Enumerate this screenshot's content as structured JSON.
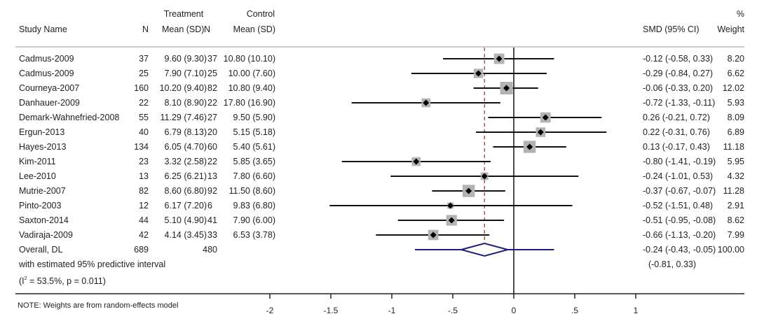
{
  "chart_data": {
    "type": "forest",
    "title": "",
    "xlabel": "",
    "x_ticks": [
      -2,
      -1.5,
      -1,
      -0.5,
      0,
      0.5,
      1
    ],
    "x_tick_labels": [
      "-2",
      "-1.5",
      "-1",
      "-.5",
      "0",
      ".5",
      "1"
    ],
    "xlim": [
      -2,
      1.9
    ],
    "null_line": 0,
    "headers": {
      "study": "Study Name",
      "trt_group": "Treatment",
      "ctrl_group": "Control",
      "trt_n": "N",
      "trt_mean_sd": "Mean (SD)",
      "ctrl_n": "N",
      "ctrl_mean_sd": "Mean (SD)",
      "effect": "SMD (95% CI)",
      "weight_top": "%",
      "weight": "Weight"
    },
    "studies": [
      {
        "name": "Cadmus-2009",
        "trt_n": "37",
        "trt_mean_sd": "9.60 (9.30)",
        "ctrl_n": "37",
        "ctrl_mean_sd": "10.80 (10.10)",
        "smd": -0.12,
        "lo": -0.58,
        "hi": 0.33,
        "ci_text": "-0.12 (-0.58, 0.33)",
        "weight": 8.2,
        "weight_text": "8.20"
      },
      {
        "name": "Cadmus-2009",
        "trt_n": "25",
        "trt_mean_sd": "7.90 (7.10)",
        "ctrl_n": "25",
        "ctrl_mean_sd": "10.00 (7.60)",
        "smd": -0.29,
        "lo": -0.84,
        "hi": 0.27,
        "ci_text": "-0.29 (-0.84, 0.27)",
        "weight": 6.62,
        "weight_text": "6.62"
      },
      {
        "name": "Courneya-2007",
        "trt_n": "160",
        "trt_mean_sd": "10.20 (9.40)",
        "ctrl_n": "82",
        "ctrl_mean_sd": "10.80 (9.40)",
        "smd": -0.06,
        "lo": -0.33,
        "hi": 0.2,
        "ci_text": "-0.06 (-0.33, 0.20)",
        "weight": 12.02,
        "weight_text": "12.02"
      },
      {
        "name": "Danhauer-2009",
        "trt_n": "22",
        "trt_mean_sd": "8.10 (8.90)",
        "ctrl_n": "22",
        "ctrl_mean_sd": "17.80 (16.90)",
        "smd": -0.72,
        "lo": -1.33,
        "hi": -0.11,
        "ci_text": "-0.72 (-1.33, -0.11)",
        "weight": 5.93,
        "weight_text": "5.93"
      },
      {
        "name": "Demark-Wahnefried-2008",
        "trt_n": "55",
        "trt_mean_sd": "11.29 (7.46)",
        "ctrl_n": "27",
        "ctrl_mean_sd": "9.50 (5.90)",
        "smd": 0.26,
        "lo": -0.21,
        "hi": 0.72,
        "ci_text": "0.26 (-0.21, 0.72)",
        "weight": 8.09,
        "weight_text": "8.09"
      },
      {
        "name": "Ergun-2013",
        "trt_n": "40",
        "trt_mean_sd": "6.79 (8.13)",
        "ctrl_n": "20",
        "ctrl_mean_sd": "5.15 (5.18)",
        "smd": 0.22,
        "lo": -0.31,
        "hi": 0.76,
        "ci_text": "0.22 (-0.31, 0.76)",
        "weight": 6.89,
        "weight_text": "6.89"
      },
      {
        "name": "Hayes-2013",
        "trt_n": "134",
        "trt_mean_sd": "6.05 (4.70)",
        "ctrl_n": "60",
        "ctrl_mean_sd": "5.40 (5.61)",
        "smd": 0.13,
        "lo": -0.17,
        "hi": 0.43,
        "ci_text": "0.13 (-0.17, 0.43)",
        "weight": 11.18,
        "weight_text": "11.18"
      },
      {
        "name": "Kim-2011",
        "trt_n": "23",
        "trt_mean_sd": "3.32 (2.58)",
        "ctrl_n": "22",
        "ctrl_mean_sd": "5.85 (3.65)",
        "smd": -0.8,
        "lo": -1.41,
        "hi": -0.19,
        "ci_text": "-0.80 (-1.41, -0.19)",
        "weight": 5.95,
        "weight_text": "5.95"
      },
      {
        "name": "Lee-2010",
        "trt_n": "13",
        "trt_mean_sd": "6.25 (6.21)",
        "ctrl_n": "13",
        "ctrl_mean_sd": "7.80 (6.60)",
        "smd": -0.24,
        "lo": -1.01,
        "hi": 0.53,
        "ci_text": "-0.24 (-1.01, 0.53)",
        "weight": 4.32,
        "weight_text": "4.32"
      },
      {
        "name": "Mutrie-2007",
        "trt_n": "82",
        "trt_mean_sd": "8.60 (6.80)",
        "ctrl_n": "92",
        "ctrl_mean_sd": "11.50 (8.60)",
        "smd": -0.37,
        "lo": -0.67,
        "hi": -0.07,
        "ci_text": "-0.37 (-0.67, -0.07)",
        "weight": 11.28,
        "weight_text": "11.28"
      },
      {
        "name": "Pinto-2003",
        "trt_n": "12",
        "trt_mean_sd": "6.17 (7.20)",
        "ctrl_n": "6",
        "ctrl_mean_sd": "9.83 (6.80)",
        "smd": -0.52,
        "lo": -1.51,
        "hi": 0.48,
        "ci_text": "-0.52 (-1.51, 0.48)",
        "weight": 2.91,
        "weight_text": "2.91"
      },
      {
        "name": "Saxton-2014",
        "trt_n": "44",
        "trt_mean_sd": "5.10 (4.90)",
        "ctrl_n": "41",
        "ctrl_mean_sd": "7.90 (6.00)",
        "smd": -0.51,
        "lo": -0.95,
        "hi": -0.08,
        "ci_text": "-0.51 (-0.95, -0.08)",
        "weight": 8.62,
        "weight_text": "8.62"
      },
      {
        "name": "Vadiraja-2009",
        "trt_n": "42",
        "trt_mean_sd": "4.14 (3.45)",
        "ctrl_n": "33",
        "ctrl_mean_sd": "6.53 (3.78)",
        "smd": -0.66,
        "lo": -1.13,
        "hi": -0.2,
        "ci_text": "-0.66 (-1.13, -0.20)",
        "weight": 7.99,
        "weight_text": "7.99"
      }
    ],
    "overall": {
      "name": "Overall, DL",
      "trt_n": "689",
      "ctrl_n": "480",
      "smd": -0.24,
      "lo": -0.43,
      "hi": -0.05,
      "ci_text": "-0.24 (-0.43, -0.05)",
      "weight_text": "100.00",
      "pi_lo": -0.81,
      "pi_hi": 0.33,
      "pi_label": "with estimated 95% predictive interval",
      "pi_text": "(-0.81, 0.33)",
      "het_prefix": "(I",
      "het_sup": "2",
      "het_suffix": " = 53.5%, p = 0.011)"
    },
    "note": "NOTE: Weights are from random-effects model",
    "colors": {
      "text": "#222222",
      "box": "#b3b3b3",
      "point": "#000000",
      "ci_line": "#111111",
      "overall_line": "#1f1f7a",
      "overall_diamond": "#1f1f7a",
      "pooled_dashed": "#a33a3a",
      "null_line": "#111111",
      "header_rule": "#cccccc"
    }
  }
}
